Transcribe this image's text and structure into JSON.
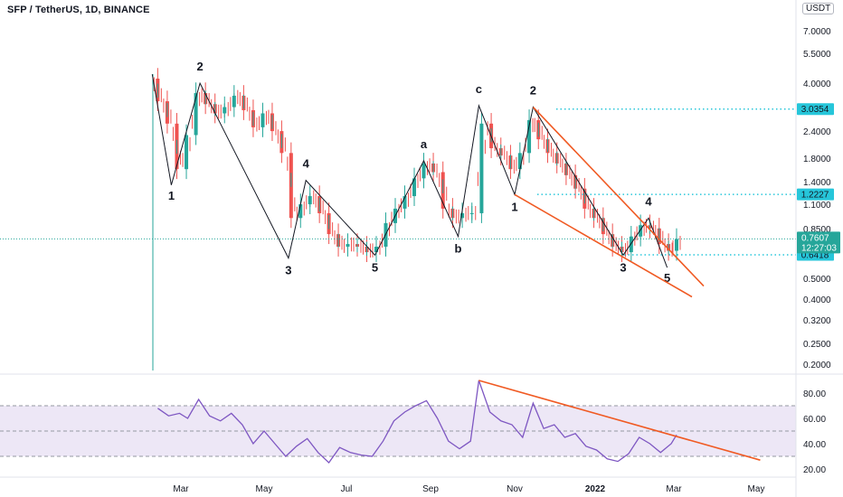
{
  "header": {
    "title": "SFP / TetherUS, 1D, BINANCE",
    "currency": "USDT"
  },
  "chart_data": [
    {
      "type": "candlestick",
      "title": "SFP / TetherUS, 1D, BINANCE",
      "y_scale": "log",
      "y_ticks": [
        "7.0000",
        "5.5000",
        "4.0000",
        "3.0354",
        "2.4000",
        "1.8000",
        "1.4000",
        "1.2227",
        "1.1000",
        "0.8500",
        "0.7607",
        "0.6418",
        "0.5000",
        "0.4000",
        "0.3200",
        "0.2500",
        "0.2000"
      ],
      "x_ticks": [
        "Mar",
        "May",
        "Jul",
        "Sep",
        "Nov",
        "2022",
        "Mar",
        "May"
      ],
      "price_labels": {
        "last_price": "0.7607",
        "countdown": "12:27:03",
        "levels": [
          "3.0354",
          "1.2227",
          "0.6418"
        ]
      },
      "wave_labels": [
        "1",
        "2",
        "3",
        "4",
        "5",
        "a",
        "b",
        "c",
        "1",
        "2",
        "3",
        "4",
        "5"
      ],
      "wave_points": [
        {
          "label": "",
          "date": "2021-02-08",
          "price": 4.4
        },
        {
          "label": "1",
          "date": "2021-02-22",
          "price": 1.35
        },
        {
          "label": "2",
          "date": "2021-03-15",
          "price": 4.0
        },
        {
          "label": "3",
          "date": "2021-05-19",
          "price": 0.62
        },
        {
          "label": "4",
          "date": "2021-06-01",
          "price": 1.42
        },
        {
          "label": "5",
          "date": "2021-07-22",
          "price": 0.64
        },
        {
          "label": "a",
          "date": "2021-08-27",
          "price": 1.75
        },
        {
          "label": "b",
          "date": "2021-09-21",
          "price": 0.78
        },
        {
          "label": "c",
          "date": "2021-10-06",
          "price": 3.15
        },
        {
          "label": "1",
          "date": "2021-11-01",
          "price": 1.22
        },
        {
          "label": "2",
          "date": "2021-11-15",
          "price": 3.1
        },
        {
          "label": "3",
          "date": "2022-01-22",
          "price": 0.64
        },
        {
          "label": "4",
          "date": "2022-02-10",
          "price": 0.95
        },
        {
          "label": "5",
          "date": "2022-02-24",
          "price": 0.56
        }
      ],
      "candles": [
        {
          "date": "2021-02-12",
          "close": 3.3
        },
        {
          "date": "2021-02-19",
          "close": 2.6
        },
        {
          "date": "2021-02-26",
          "close": 1.6
        },
        {
          "date": "2021-03-05",
          "close": 2.3
        },
        {
          "date": "2021-03-12",
          "close": 3.6
        },
        {
          "date": "2021-03-19",
          "close": 3.2
        },
        {
          "date": "2021-03-26",
          "close": 2.9
        },
        {
          "date": "2021-04-02",
          "close": 3.1
        },
        {
          "date": "2021-04-09",
          "close": 3.5
        },
        {
          "date": "2021-04-16",
          "close": 3.0
        },
        {
          "date": "2021-04-23",
          "close": 2.5
        },
        {
          "date": "2021-04-30",
          "close": 2.9
        },
        {
          "date": "2021-05-07",
          "close": 2.4
        },
        {
          "date": "2021-05-14",
          "close": 1.9
        },
        {
          "date": "2021-05-21",
          "close": 0.95
        },
        {
          "date": "2021-05-28",
          "close": 1.1
        },
        {
          "date": "2021-06-04",
          "close": 1.2
        },
        {
          "date": "2021-06-11",
          "close": 1.0
        },
        {
          "date": "2021-06-18",
          "close": 0.8
        },
        {
          "date": "2021-06-25",
          "close": 0.7
        },
        {
          "date": "2021-07-02",
          "close": 0.72
        },
        {
          "date": "2021-07-09",
          "close": 0.7
        },
        {
          "date": "2021-07-16",
          "close": 0.66
        },
        {
          "date": "2021-07-23",
          "close": 0.7
        },
        {
          "date": "2021-07-30",
          "close": 0.9
        },
        {
          "date": "2021-08-06",
          "close": 1.05
        },
        {
          "date": "2021-08-13",
          "close": 1.2
        },
        {
          "date": "2021-08-20",
          "close": 1.45
        },
        {
          "date": "2021-08-27",
          "close": 1.7
        },
        {
          "date": "2021-09-03",
          "close": 1.55
        },
        {
          "date": "2021-09-10",
          "close": 1.05
        },
        {
          "date": "2021-09-17",
          "close": 0.95
        },
        {
          "date": "2021-09-24",
          "close": 1.0
        },
        {
          "date": "2021-10-01",
          "close": 1.0
        },
        {
          "date": "2021-10-08",
          "close": 2.6
        },
        {
          "date": "2021-10-15",
          "close": 2.0
        },
        {
          "date": "2021-10-22",
          "close": 1.85
        },
        {
          "date": "2021-10-29",
          "close": 1.6
        },
        {
          "date": "2021-11-05",
          "close": 1.9
        },
        {
          "date": "2021-11-12",
          "close": 2.7
        },
        {
          "date": "2021-11-19",
          "close": 2.2
        },
        {
          "date": "2021-11-26",
          "close": 1.9
        },
        {
          "date": "2021-12-03",
          "close": 1.7
        },
        {
          "date": "2021-12-10",
          "close": 1.5
        },
        {
          "date": "2021-12-17",
          "close": 1.3
        },
        {
          "date": "2021-12-24",
          "close": 1.05
        },
        {
          "date": "2021-12-31",
          "close": 0.95
        },
        {
          "date": "2022-01-07",
          "close": 0.8
        },
        {
          "date": "2022-01-14",
          "close": 0.7
        },
        {
          "date": "2022-01-21",
          "close": 0.66
        },
        {
          "date": "2022-01-28",
          "close": 0.78
        },
        {
          "date": "2022-02-04",
          "close": 0.88
        },
        {
          "date": "2022-02-11",
          "close": 0.85
        },
        {
          "date": "2022-02-18",
          "close": 0.72
        },
        {
          "date": "2022-02-25",
          "close": 0.67
        },
        {
          "date": "2022-03-03",
          "close": 0.76
        }
      ]
    },
    {
      "type": "line",
      "name": "RSI",
      "y_ticks": [
        "80.00",
        "60.00",
        "40.00",
        "20.00"
      ],
      "bands": [
        30,
        50,
        70
      ],
      "x_ticks": [
        "Mar",
        "May",
        "Jul",
        "Sep",
        "Nov",
        "2022",
        "Mar",
        "May"
      ],
      "points": [
        {
          "date": "2021-02-12",
          "value": 68
        },
        {
          "date": "2021-02-20",
          "value": 62
        },
        {
          "date": "2021-02-28",
          "value": 64
        },
        {
          "date": "2021-03-06",
          "value": 60
        },
        {
          "date": "2021-03-14",
          "value": 75
        },
        {
          "date": "2021-03-22",
          "value": 62
        },
        {
          "date": "2021-03-30",
          "value": 58
        },
        {
          "date": "2021-04-07",
          "value": 64
        },
        {
          "date": "2021-04-15",
          "value": 55
        },
        {
          "date": "2021-04-23",
          "value": 40
        },
        {
          "date": "2021-05-01",
          "value": 50
        },
        {
          "date": "2021-05-09",
          "value": 40
        },
        {
          "date": "2021-05-17",
          "value": 30
        },
        {
          "date": "2021-05-25",
          "value": 38
        },
        {
          "date": "2021-06-02",
          "value": 44
        },
        {
          "date": "2021-06-10",
          "value": 33
        },
        {
          "date": "2021-06-18",
          "value": 25
        },
        {
          "date": "2021-06-26",
          "value": 37
        },
        {
          "date": "2021-07-04",
          "value": 33
        },
        {
          "date": "2021-07-12",
          "value": 31
        },
        {
          "date": "2021-07-20",
          "value": 30
        },
        {
          "date": "2021-07-28",
          "value": 42
        },
        {
          "date": "2021-08-05",
          "value": 58
        },
        {
          "date": "2021-08-13",
          "value": 65
        },
        {
          "date": "2021-08-21",
          "value": 70
        },
        {
          "date": "2021-08-29",
          "value": 74
        },
        {
          "date": "2021-09-06",
          "value": 60
        },
        {
          "date": "2021-09-14",
          "value": 42
        },
        {
          "date": "2021-09-22",
          "value": 36
        },
        {
          "date": "2021-09-30",
          "value": 42
        },
        {
          "date": "2021-10-06",
          "value": 90
        },
        {
          "date": "2021-10-14",
          "value": 65
        },
        {
          "date": "2021-10-22",
          "value": 58
        },
        {
          "date": "2021-10-30",
          "value": 55
        },
        {
          "date": "2021-11-07",
          "value": 45
        },
        {
          "date": "2021-11-15",
          "value": 72
        },
        {
          "date": "2021-11-23",
          "value": 52
        },
        {
          "date": "2021-12-01",
          "value": 55
        },
        {
          "date": "2021-12-09",
          "value": 45
        },
        {
          "date": "2021-12-17",
          "value": 48
        },
        {
          "date": "2021-12-25",
          "value": 38
        },
        {
          "date": "2022-01-02",
          "value": 35
        },
        {
          "date": "2022-01-10",
          "value": 28
        },
        {
          "date": "2022-01-18",
          "value": 26
        },
        {
          "date": "2022-01-26",
          "value": 32
        },
        {
          "date": "2022-02-03",
          "value": 45
        },
        {
          "date": "2022-02-11",
          "value": 40
        },
        {
          "date": "2022-02-19",
          "value": 33
        },
        {
          "date": "2022-02-27",
          "value": 40
        },
        {
          "date": "2022-03-03",
          "value": 47
        }
      ],
      "trendline": [
        {
          "date": "2021-10-06",
          "value": 90
        },
        {
          "date": "2022-05-04",
          "value": 27
        }
      ]
    }
  ],
  "colors": {
    "up": "#26a69a",
    "down": "#ef5350",
    "wave_line": "#131722",
    "channel": "#f05a23",
    "level": "#00bcd4",
    "rsi": "#7e57c2",
    "rsi_band": "#ede7f6"
  }
}
